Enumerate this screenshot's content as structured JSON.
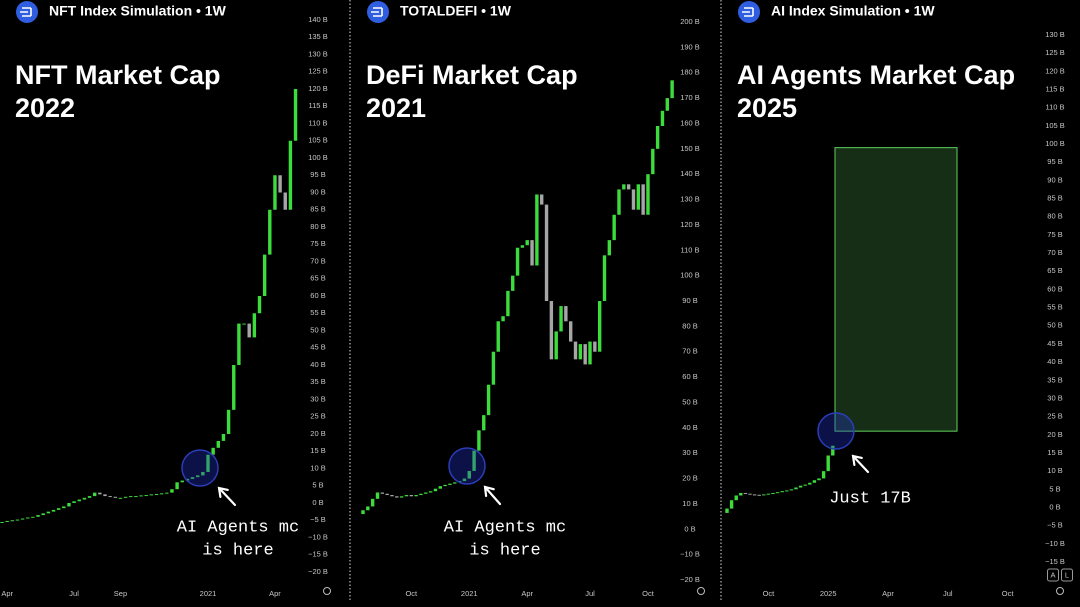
{
  "chart_data": [
    {
      "type": "candlestick",
      "source": "NFT Index Simulation • 1W",
      "title": [
        "NFT Market Cap",
        "2022"
      ],
      "categories": [
        null,
        "Apr",
        null,
        null,
        null,
        null,
        null,
        null,
        null,
        null,
        null,
        null,
        null,
        null,
        "Jul",
        null,
        null,
        null,
        null,
        null,
        null,
        null,
        null,
        "Sep",
        null,
        null,
        null,
        null,
        null,
        null,
        null,
        null,
        null,
        null,
        null,
        null,
        null,
        null,
        null,
        null,
        "2021",
        null,
        null,
        null,
        null,
        null,
        null,
        null,
        null,
        null,
        null,
        null,
        null,
        "Apr",
        null,
        null,
        null,
        null
      ],
      "open": [
        -5.7,
        -5.5,
        -5.2,
        -5,
        -4.8,
        -4.5,
        -4.2,
        -4,
        -3.5,
        -3,
        -2.5,
        -2,
        -1.5,
        -1,
        0,
        0.5,
        1,
        1.5,
        2,
        3,
        2.5,
        2,
        1.8,
        1.5,
        1.5,
        1.8,
        2,
        2,
        2.2,
        2.3,
        2.5,
        2.6,
        2.8,
        3,
        4,
        6,
        6.5,
        7,
        7.5,
        8,
        9,
        14,
        16,
        18,
        20,
        27,
        40,
        52,
        52,
        48,
        55,
        60,
        72,
        85,
        95,
        90,
        85,
        105
      ],
      "close": [
        -5.5,
        -5.2,
        -5,
        -4.8,
        -4.5,
        -4.2,
        -4,
        -3.5,
        -3,
        -2.5,
        -2,
        -1.5,
        -1,
        0,
        0.5,
        1,
        1.5,
        2,
        3,
        2.5,
        2,
        1.8,
        1.5,
        1.5,
        1.8,
        2,
        2,
        2.2,
        2.3,
        2.5,
        2.6,
        2.8,
        3,
        4,
        6,
        6.5,
        7,
        7.5,
        8,
        9,
        14,
        16,
        18,
        20,
        27,
        40,
        52,
        52,
        48,
        55,
        60,
        72,
        85,
        95,
        90,
        85,
        105,
        120
      ],
      "up_color": "#3ddc3d",
      "down_color": "#a6a6a6",
      "grid": false,
      "ylim": [
        -20,
        140
      ],
      "yticks": [
        {
          "value": 140,
          "label": "140 B"
        },
        {
          "value": 135,
          "label": "135 B"
        },
        {
          "value": 130,
          "label": "130 B"
        },
        {
          "value": 125,
          "label": "125 B"
        },
        {
          "value": 120,
          "label": "120 B"
        },
        {
          "value": 115,
          "label": "115 B"
        },
        {
          "value": 110,
          "label": "110 B"
        },
        {
          "value": 105,
          "label": "105 B"
        },
        {
          "value": 100,
          "label": "100 B"
        },
        {
          "value": 95,
          "label": "95 B"
        },
        {
          "value": 90,
          "label": "90 B"
        },
        {
          "value": 85,
          "label": "85 B"
        },
        {
          "value": 80,
          "label": "80 B"
        },
        {
          "value": 75,
          "label": "75 B"
        },
        {
          "value": 70,
          "label": "70 B"
        },
        {
          "value": 65,
          "label": "65 B"
        },
        {
          "value": 60,
          "label": "60 B"
        },
        {
          "value": 55,
          "label": "55 B"
        },
        {
          "value": 50,
          "label": "50 B"
        },
        {
          "value": 45,
          "label": "45 B"
        },
        {
          "value": 40,
          "label": "40 B"
        },
        {
          "value": 35,
          "label": "35 B"
        },
        {
          "value": 30,
          "label": "30 B"
        },
        {
          "value": 25,
          "label": "25 B"
        },
        {
          "value": 20,
          "label": "20 B"
        },
        {
          "value": 15,
          "label": "15 B"
        },
        {
          "value": 10,
          "label": "10 B"
        },
        {
          "value": 5,
          "label": "5 B"
        },
        {
          "value": 0,
          "label": "0 B"
        },
        {
          "value": -5,
          "label": "−5 B"
        },
        {
          "value": -10,
          "label": "−10 B"
        },
        {
          "value": -15,
          "label": "−15 B"
        },
        {
          "value": -20,
          "label": "−20 B"
        }
      ],
      "annotation": [
        "AI Agents mc",
        "is here"
      ]
    },
    {
      "type": "candlestick",
      "source": "TOTALDEFI • 1W",
      "title": [
        "DeFi Market Cap",
        "2021"
      ],
      "categories": [
        null,
        null,
        null,
        null,
        null,
        null,
        null,
        null,
        null,
        null,
        "Oct",
        null,
        null,
        null,
        null,
        null,
        null,
        null,
        null,
        null,
        null,
        null,
        "2021",
        null,
        null,
        null,
        null,
        null,
        null,
        null,
        null,
        null,
        null,
        null,
        "Apr",
        null,
        null,
        null,
        null,
        null,
        null,
        null,
        null,
        null,
        null,
        null,
        null,
        "Jul",
        null,
        null,
        null,
        null,
        null,
        null,
        null,
        null,
        null,
        null,
        null,
        "Oct",
        null,
        null,
        null,
        null,
        null
      ],
      "open": [
        6,
        7.5,
        9,
        12,
        14.5,
        14,
        13.5,
        13,
        12.5,
        13,
        13.5,
        13,
        13.5,
        14,
        14.5,
        15,
        16,
        17,
        17.5,
        18,
        18.5,
        19,
        20,
        23,
        31,
        39,
        45,
        57,
        70,
        82,
        84,
        94,
        100,
        111,
        112,
        114,
        104,
        132,
        128,
        90,
        67,
        78,
        88,
        82,
        74,
        67,
        73,
        65,
        74,
        70,
        90,
        108,
        114,
        124,
        134,
        136,
        134,
        126,
        136,
        124,
        140,
        150,
        159,
        165,
        170
      ],
      "close": [
        7.5,
        9,
        12,
        14.5,
        14,
        13.5,
        13,
        12.5,
        13,
        13.5,
        13,
        13.5,
        14,
        14.5,
        15,
        16,
        17,
        17.5,
        18,
        18.5,
        19,
        20,
        23,
        31,
        39,
        45,
        57,
        70,
        82,
        84,
        94,
        100,
        111,
        112,
        114,
        104,
        132,
        128,
        90,
        67,
        78,
        88,
        82,
        74,
        67,
        73,
        65,
        74,
        70,
        90,
        108,
        114,
        124,
        134,
        136,
        134,
        126,
        136,
        124,
        140,
        150,
        159,
        165,
        170,
        177
      ],
      "up_color": "#3ddc3d",
      "down_color": "#a6a6a6",
      "grid": false,
      "ylim": [
        -20,
        200
      ],
      "yticks": [
        {
          "value": 200,
          "label": "200 B"
        },
        {
          "value": 190,
          "label": "190 B"
        },
        {
          "value": 180,
          "label": "180 B"
        },
        {
          "value": 170,
          "label": "170 B"
        },
        {
          "value": 160,
          "label": "160 B"
        },
        {
          "value": 150,
          "label": "150 B"
        },
        {
          "value": 140,
          "label": "140 B"
        },
        {
          "value": 130,
          "label": "130 B"
        },
        {
          "value": 120,
          "label": "120 B"
        },
        {
          "value": 110,
          "label": "110 B"
        },
        {
          "value": 100,
          "label": "100 B"
        },
        {
          "value": 90,
          "label": "90 B"
        },
        {
          "value": 80,
          "label": "80 B"
        },
        {
          "value": 70,
          "label": "70 B"
        },
        {
          "value": 60,
          "label": "60 B"
        },
        {
          "value": 50,
          "label": "50 B"
        },
        {
          "value": 40,
          "label": "40 B"
        },
        {
          "value": 30,
          "label": "30 B"
        },
        {
          "value": 20,
          "label": "20 B"
        },
        {
          "value": 10,
          "label": "10 B"
        },
        {
          "value": 0,
          "label": "0 B"
        },
        {
          "value": -10,
          "label": "−10 B"
        },
        {
          "value": -20,
          "label": "−20 B"
        }
      ],
      "annotation": [
        "AI Agents mc",
        "is here"
      ]
    },
    {
      "type": "candlestick",
      "source": "AI Index Simulation • 1W",
      "title": [
        "AI Agents Market Cap",
        "2025"
      ],
      "categories": [
        null,
        null,
        null,
        null,
        null,
        null,
        null,
        null,
        null,
        "Oct",
        null,
        null,
        null,
        null,
        null,
        null,
        null,
        null,
        null,
        null,
        null,
        null,
        "2025",
        null,
        null,
        null,
        null,
        null,
        null,
        null,
        null,
        null,
        null,
        null,
        null,
        "Apr",
        null,
        null,
        null,
        null,
        null,
        null,
        null,
        null,
        null,
        null,
        null,
        null,
        "Jul",
        null,
        null,
        null,
        null,
        null,
        null,
        null,
        null,
        null,
        null,
        null,
        null,
        "Oct"
      ],
      "open": [
        -1.5,
        -0.3,
        2,
        3.3,
        4,
        3.8,
        3.6,
        3.5,
        3.4,
        3.6,
        3.8,
        4,
        4.2,
        4.5,
        4.7,
        5,
        5.5,
        6,
        6.3,
        6.8,
        7.5,
        8,
        10,
        14.3,
        null,
        null,
        null,
        null,
        null,
        null,
        null,
        null,
        null,
        null,
        null,
        null,
        null,
        null,
        null,
        null,
        null,
        null,
        null,
        null,
        null,
        null,
        null,
        null,
        null,
        null,
        null,
        null,
        null,
        null,
        null,
        null,
        null,
        null,
        null,
        null,
        null,
        null
      ],
      "close": [
        -0.3,
        2,
        3.3,
        4,
        3.8,
        3.6,
        3.5,
        3.4,
        3.6,
        3.8,
        4,
        4.2,
        4.5,
        4.7,
        5,
        5.5,
        6,
        6.3,
        6.8,
        7.5,
        8,
        10,
        14.3,
        17,
        null,
        null,
        null,
        null,
        null,
        null,
        null,
        null,
        null,
        null,
        null,
        null,
        null,
        null,
        null,
        null,
        null,
        null,
        null,
        null,
        null,
        null,
        null,
        null,
        null,
        null,
        null,
        null,
        null,
        null,
        null,
        null,
        null,
        null,
        null,
        null,
        null,
        null
      ],
      "up_color": "#3ddc3d",
      "down_color": "#a6a6a6",
      "grid": false,
      "ylim": [
        -15,
        130
      ],
      "yticks": [
        {
          "value": 130,
          "label": "130 B"
        },
        {
          "value": 125,
          "label": "125 B"
        },
        {
          "value": 120,
          "label": "120 B"
        },
        {
          "value": 115,
          "label": "115 B"
        },
        {
          "value": 110,
          "label": "110 B"
        },
        {
          "value": 105,
          "label": "105 B"
        },
        {
          "value": 100,
          "label": "100 B"
        },
        {
          "value": 95,
          "label": "95 B"
        },
        {
          "value": 90,
          "label": "90 B"
        },
        {
          "value": 85,
          "label": "85 B"
        },
        {
          "value": 80,
          "label": "80 B"
        },
        {
          "value": 75,
          "label": "75 B"
        },
        {
          "value": 70,
          "label": "70 B"
        },
        {
          "value": 65,
          "label": "65 B"
        },
        {
          "value": 60,
          "label": "60 B"
        },
        {
          "value": 55,
          "label": "55 B"
        },
        {
          "value": 50,
          "label": "50 B"
        },
        {
          "value": 45,
          "label": "45 B"
        },
        {
          "value": 40,
          "label": "40 B"
        },
        {
          "value": 35,
          "label": "35 B"
        },
        {
          "value": 30,
          "label": "30 B"
        },
        {
          "value": 25,
          "label": "25 B"
        },
        {
          "value": 20,
          "label": "20 B"
        },
        {
          "value": 15,
          "label": "15 B"
        },
        {
          "value": 10,
          "label": "10 B"
        },
        {
          "value": 5,
          "label": "5 B"
        },
        {
          "value": 0,
          "label": "0 B"
        },
        {
          "value": -5,
          "label": "−5 B"
        },
        {
          "value": -10,
          "label": "−10 B"
        },
        {
          "value": -15,
          "label": "−15 B"
        }
      ],
      "target_zone": {
        "low": 21,
        "high": 99,
        "color": "#5fd35f"
      },
      "annotation": [
        "Just 17B"
      ]
    }
  ],
  "controls": [
    "A",
    "L"
  ]
}
